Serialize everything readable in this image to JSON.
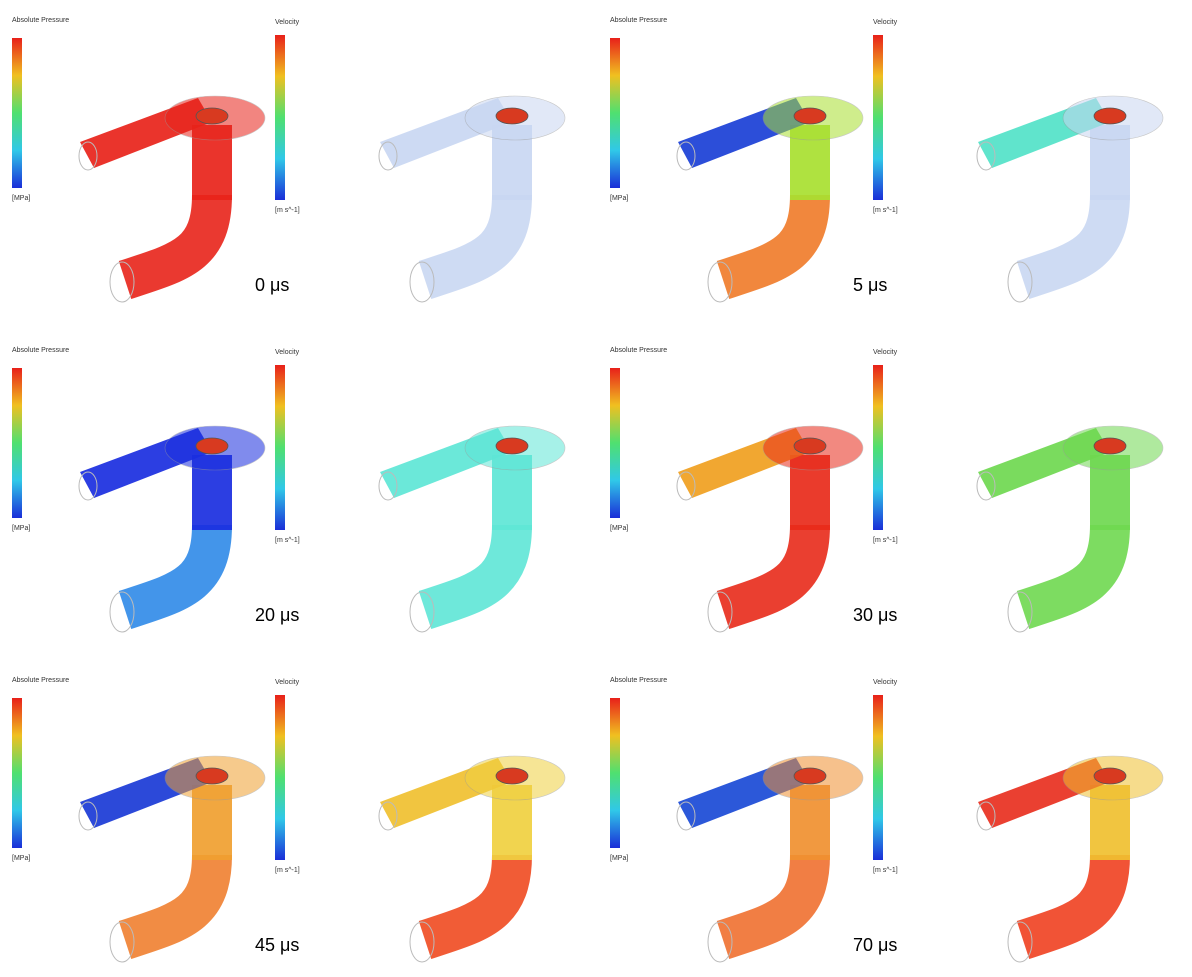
{
  "panels": [
    {
      "time": "0 μs",
      "pressure_title": "Absolute Pressure",
      "pressure_unit": "[MPa]",
      "velocity_title": "Velocity",
      "velocity_unit": "[m s^-1]",
      "pressure_colors": {
        "inlet": "#e8231a",
        "riser": "#e8231a",
        "bend": "#e8231a"
      },
      "velocity_colors": {
        "inlet": "#c9d7f2",
        "riser": "#c9d7f2",
        "bend": "#c9d7f2"
      }
    },
    {
      "time": "5 μs",
      "pressure_title": "Absolute Pressure",
      "pressure_unit": "[MPa]",
      "velocity_title": "Velocity",
      "velocity_unit": "[m s^-1]",
      "pressure_colors": {
        "inlet": "#1a3fd6",
        "riser": "#a8e030",
        "bend": "#f07a28"
      },
      "velocity_colors": {
        "inlet": "#52e2c8",
        "riser": "#c9d7f2",
        "bend": "#c9d7f2"
      }
    },
    {
      "time": "20 μs",
      "pressure_title": "Absolute Pressure",
      "pressure_unit": "[MPa]",
      "velocity_title": "Velocity",
      "velocity_unit": "[m s^-1]",
      "pressure_colors": {
        "inlet": "#1a2ee0",
        "riser": "#1a2ee0",
        "bend": "#2f8ae8"
      },
      "velocity_colors": {
        "inlet": "#5ee6d6",
        "riser": "#5ee6d6",
        "bend": "#5ee6d6"
      }
    },
    {
      "time": "30 μs",
      "pressure_title": "Absolute Pressure",
      "pressure_unit": "[MPa]",
      "velocity_title": "Velocity",
      "velocity_unit": "[m s^-1]",
      "pressure_colors": {
        "inlet": "#f0a020",
        "riser": "#e82a1a",
        "bend": "#e82a1a"
      },
      "velocity_colors": {
        "inlet": "#6fd850",
        "riser": "#6fd850",
        "bend": "#6fd850"
      }
    },
    {
      "time": "45 μs",
      "pressure_title": "Absolute Pressure",
      "pressure_unit": "[MPa]",
      "velocity_title": "Velocity",
      "velocity_unit": "[m s^-1]",
      "pressure_colors": {
        "inlet": "#1a3ad6",
        "riser": "#f0a030",
        "bend": "#f08030"
      },
      "velocity_colors": {
        "inlet": "#f0c030",
        "riser": "#f0d040",
        "bend": "#f04a20"
      }
    },
    {
      "time": "70 μs",
      "pressure_title": "Absolute Pressure",
      "pressure_unit": "[MPa]",
      "velocity_title": "Velocity",
      "velocity_unit": "[m s^-1]",
      "pressure_colors": {
        "inlet": "#1a4ad6",
        "riser": "#f09030",
        "bend": "#f07030"
      },
      "velocity_colors": {
        "inlet": "#e83020",
        "riser": "#f0c030",
        "bend": "#f04020"
      }
    }
  ]
}
